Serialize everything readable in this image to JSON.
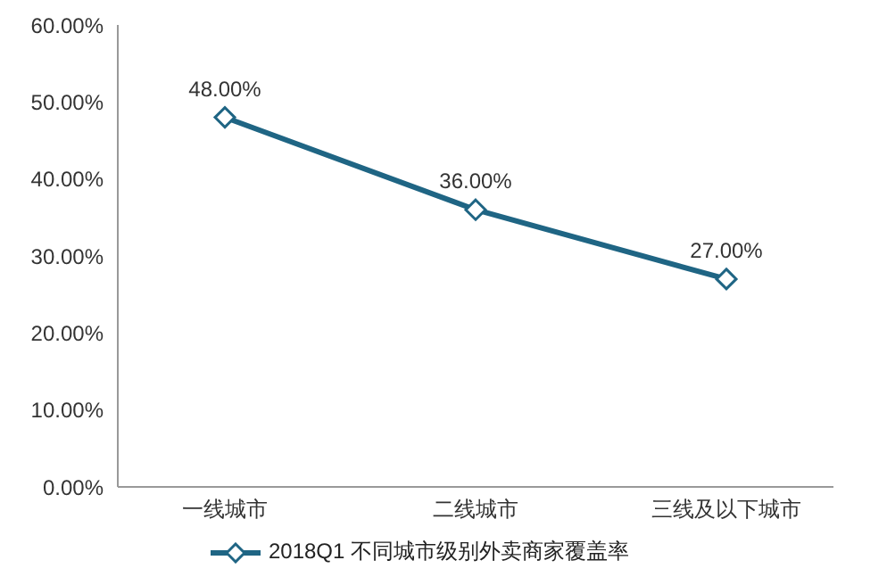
{
  "chart_data": {
    "type": "line",
    "categories": [
      "一线城市",
      "二线城市",
      "三线及以下城市"
    ],
    "series": [
      {
        "name": "2018Q1 不同城市级别外卖商家覆盖率",
        "color": "#1f6584",
        "values": [
          48,
          36,
          27
        ],
        "value_labels": [
          "48.00%",
          "36.00%",
          "27.00%"
        ]
      }
    ],
    "ylim": [
      0,
      60
    ],
    "yticks": [
      {
        "value": 0,
        "label": "0.00%"
      },
      {
        "value": 10,
        "label": "10.00%"
      },
      {
        "value": 20,
        "label": "20.00%"
      },
      {
        "value": 30,
        "label": "30.00%"
      },
      {
        "value": 40,
        "label": "40.00%"
      },
      {
        "value": 50,
        "label": "50.00%"
      },
      {
        "value": 60,
        "label": "60.00%"
      }
    ],
    "grid": false,
    "legend": "bottom",
    "marker": "diamond",
    "line_style": "solid"
  }
}
